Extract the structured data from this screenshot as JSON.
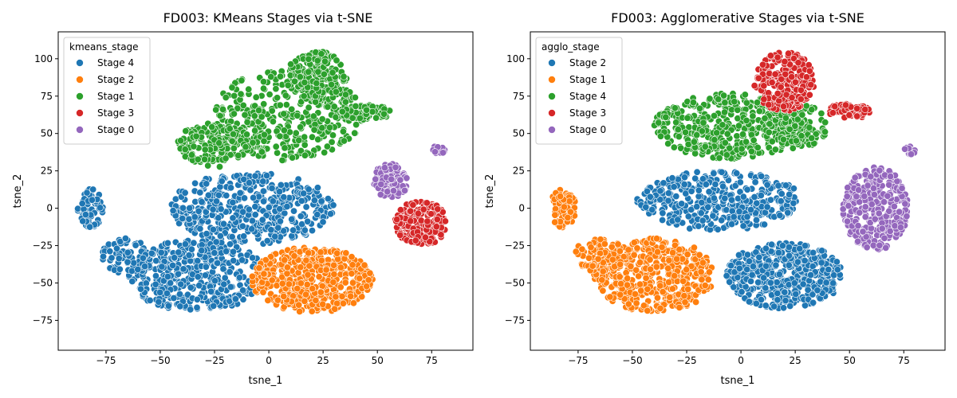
{
  "chart_data": [
    {
      "type": "scatter",
      "title": "FD003: KMeans Stages via t-SNE",
      "xlabel": "tsne_1",
      "ylabel": "tsne_2",
      "xlim": [
        -97,
        94
      ],
      "ylim": [
        -95,
        118
      ],
      "xticks": [
        -75,
        -50,
        -25,
        0,
        25,
        50,
        75
      ],
      "yticks": [
        -75,
        -50,
        -25,
        0,
        25,
        50,
        75,
        100
      ],
      "grid": false,
      "legend": {
        "title": "kmeans_stage",
        "placement": "top-left",
        "entries": [
          {
            "label": "Stage 4",
            "color": "#1f77b4"
          },
          {
            "label": "Stage 2",
            "color": "#ff7f0e"
          },
          {
            "label": "Stage 1",
            "color": "#2ca02c"
          },
          {
            "label": "Stage 3",
            "color": "#d62728"
          },
          {
            "label": "Stage 0",
            "color": "#9467bd"
          }
        ]
      },
      "regions": [
        {
          "series": "Stage 1",
          "cx": 8,
          "cy": 62,
          "rx": 35,
          "ry": 30,
          "n": 380
        },
        {
          "series": "Stage 1",
          "cx": 22,
          "cy": 88,
          "rx": 14,
          "ry": 17,
          "n": 160
        },
        {
          "series": "Stage 1",
          "cx": -25,
          "cy": 42,
          "rx": 18,
          "ry": 15,
          "n": 160
        },
        {
          "series": "Stage 1",
          "cx": 45,
          "cy": 64,
          "rx": 12,
          "ry": 5,
          "n": 70
        },
        {
          "series": "Stage 4",
          "cx": -8,
          "cy": 0,
          "rx": 38,
          "ry": 24,
          "n": 430
        },
        {
          "series": "Stage 4",
          "cx": -33,
          "cy": -45,
          "rx": 32,
          "ry": 24,
          "n": 380
        },
        {
          "series": "Stage 4",
          "cx": -82,
          "cy": 0,
          "rx": 6,
          "ry": 13,
          "n": 70
        },
        {
          "series": "Stage 4",
          "cx": -65,
          "cy": -32,
          "rx": 12,
          "ry": 12,
          "n": 90
        },
        {
          "series": "Stage 2",
          "cx": 20,
          "cy": -48,
          "rx": 28,
          "ry": 22,
          "n": 480
        },
        {
          "series": "Stage 3",
          "cx": 70,
          "cy": -10,
          "rx": 12,
          "ry": 15,
          "n": 200
        },
        {
          "series": "Stage 0",
          "cx": 56,
          "cy": 18,
          "rx": 8,
          "ry": 12,
          "n": 130
        },
        {
          "series": "Stage 0",
          "cx": 78,
          "cy": 39,
          "rx": 3,
          "ry": 3,
          "n": 14
        }
      ]
    },
    {
      "type": "scatter",
      "title": "FD003: Agglomerative Stages via t-SNE",
      "xlabel": "tsne_1",
      "ylabel": "tsne_2",
      "xlim": [
        -97,
        94
      ],
      "ylim": [
        -95,
        118
      ],
      "xticks": [
        -75,
        -50,
        -25,
        0,
        25,
        50,
        75
      ],
      "yticks": [
        -75,
        -50,
        -25,
        0,
        25,
        50,
        75,
        100
      ],
      "grid": false,
      "legend": {
        "title": "agglo_stage",
        "placement": "top-left",
        "entries": [
          {
            "label": "Stage 2",
            "color": "#1f77b4"
          },
          {
            "label": "Stage 1",
            "color": "#ff7f0e"
          },
          {
            "label": "Stage 4",
            "color": "#2ca02c"
          },
          {
            "label": "Stage 3",
            "color": "#d62728"
          },
          {
            "label": "Stage 0",
            "color": "#9467bd"
          }
        ]
      },
      "regions": [
        {
          "series": "Stage 4",
          "cx": -5,
          "cy": 55,
          "rx": 35,
          "ry": 22,
          "n": 420
        },
        {
          "series": "Stage 4",
          "cx": 25,
          "cy": 55,
          "rx": 15,
          "ry": 15,
          "n": 130
        },
        {
          "series": "Stage 3",
          "cx": 20,
          "cy": 85,
          "rx": 14,
          "ry": 20,
          "n": 220
        },
        {
          "series": "Stage 3",
          "cx": 50,
          "cy": 65,
          "rx": 10,
          "ry": 5,
          "n": 60
        },
        {
          "series": "Stage 2",
          "cx": -10,
          "cy": 5,
          "rx": 38,
          "ry": 20,
          "n": 380
        },
        {
          "series": "Stage 2",
          "cx": 20,
          "cy": -45,
          "rx": 27,
          "ry": 22,
          "n": 460
        },
        {
          "series": "Stage 1",
          "cx": -40,
          "cy": -45,
          "rx": 28,
          "ry": 25,
          "n": 460
        },
        {
          "series": "Stage 1",
          "cx": -82,
          "cy": 0,
          "rx": 6,
          "ry": 13,
          "n": 70
        },
        {
          "series": "Stage 1",
          "cx": -65,
          "cy": -32,
          "rx": 12,
          "ry": 12,
          "n": 90
        },
        {
          "series": "Stage 0",
          "cx": 62,
          "cy": 0,
          "rx": 15,
          "ry": 28,
          "n": 320
        },
        {
          "series": "Stage 0",
          "cx": 78,
          "cy": 39,
          "rx": 3,
          "ry": 3,
          "n": 14
        }
      ]
    }
  ]
}
